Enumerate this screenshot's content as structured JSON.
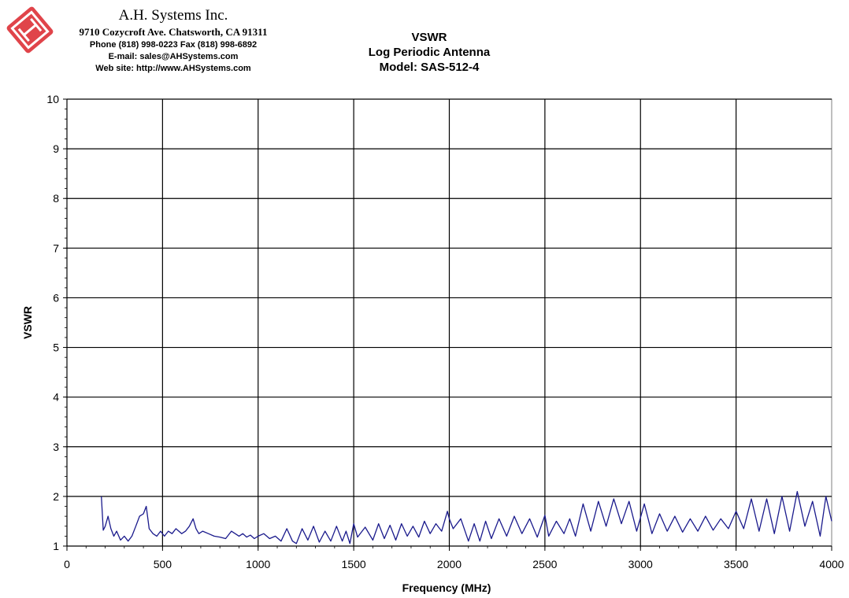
{
  "header": {
    "company_name": "A.H. Systems Inc.",
    "address": "9710 Cozycroft Ave. Chatsworth, CA 91311",
    "phone": "Phone (818) 998-0223 Fax (818) 998-6892",
    "email": "E-mail: sales@AHSystems.com",
    "website": "Web site: http://www.AHSystems.com"
  },
  "colors": {
    "series": "#1a1a8c",
    "logo": "#e0444a",
    "grid": "#000000"
  },
  "chart_data": {
    "type": "line",
    "title_lines": [
      "VSWR",
      "Log Periodic Antenna",
      "Model: SAS-512-4"
    ],
    "xlabel": "Frequency (MHz)",
    "ylabel": "VSWR",
    "xlim": [
      0,
      4000
    ],
    "ylim": [
      1,
      10
    ],
    "xticks": [
      0,
      500,
      1000,
      1500,
      2000,
      2500,
      3000,
      3500,
      4000
    ],
    "yticks": [
      1,
      2,
      3,
      4,
      5,
      6,
      7,
      8,
      9,
      10
    ],
    "grid": true,
    "legend": "none",
    "series": [
      {
        "x": [
          180,
          190,
          200,
          215,
          230,
          245,
          260,
          280,
          300,
          320,
          340,
          360,
          380,
          400,
          415,
          430,
          450,
          470,
          490,
          510,
          530,
          550,
          570,
          600,
          620,
          640,
          660,
          675,
          690,
          710,
          740,
          770,
          800,
          830,
          860,
          880,
          900,
          920,
          940,
          960,
          980,
          1000,
          1030,
          1060,
          1090,
          1120,
          1150,
          1180,
          1200,
          1230,
          1260,
          1290,
          1320,
          1350,
          1380,
          1410,
          1440,
          1460,
          1480,
          1500,
          1520,
          1560,
          1600,
          1630,
          1660,
          1690,
          1720,
          1750,
          1780,
          1810,
          1840,
          1870,
          1900,
          1930,
          1960,
          1990,
          2000,
          2020,
          2060,
          2100,
          2130,
          2160,
          2190,
          2220,
          2260,
          2300,
          2340,
          2380,
          2420,
          2460,
          2500,
          2520,
          2560,
          2600,
          2630,
          2660,
          2700,
          2740,
          2780,
          2820,
          2860,
          2900,
          2940,
          2980,
          3020,
          3060,
          3100,
          3140,
          3180,
          3220,
          3260,
          3300,
          3340,
          3380,
          3420,
          3460,
          3500,
          3540,
          3580,
          3620,
          3660,
          3700,
          3740,
          3780,
          3820,
          3860,
          3900,
          3940,
          3970,
          4000
        ],
        "y": [
          2.0,
          1.32,
          1.4,
          1.6,
          1.35,
          1.2,
          1.3,
          1.12,
          1.2,
          1.1,
          1.2,
          1.4,
          1.6,
          1.65,
          1.8,
          1.35,
          1.25,
          1.2,
          1.3,
          1.2,
          1.3,
          1.25,
          1.35,
          1.25,
          1.3,
          1.4,
          1.55,
          1.35,
          1.25,
          1.3,
          1.25,
          1.2,
          1.18,
          1.15,
          1.3,
          1.25,
          1.2,
          1.25,
          1.18,
          1.22,
          1.15,
          1.2,
          1.25,
          1.15,
          1.2,
          1.1,
          1.35,
          1.1,
          1.05,
          1.35,
          1.12,
          1.4,
          1.08,
          1.3,
          1.1,
          1.4,
          1.1,
          1.3,
          1.05,
          1.45,
          1.18,
          1.38,
          1.12,
          1.45,
          1.15,
          1.42,
          1.12,
          1.45,
          1.2,
          1.4,
          1.18,
          1.5,
          1.25,
          1.45,
          1.3,
          1.7,
          1.55,
          1.35,
          1.55,
          1.1,
          1.45,
          1.1,
          1.5,
          1.15,
          1.55,
          1.2,
          1.6,
          1.25,
          1.55,
          1.18,
          1.62,
          1.2,
          1.5,
          1.25,
          1.55,
          1.2,
          1.85,
          1.3,
          1.9,
          1.4,
          1.95,
          1.45,
          1.9,
          1.3,
          1.85,
          1.25,
          1.65,
          1.3,
          1.6,
          1.28,
          1.55,
          1.3,
          1.6,
          1.32,
          1.55,
          1.35,
          1.7,
          1.35,
          1.95,
          1.3,
          1.95,
          1.25,
          2.0,
          1.3,
          2.1,
          1.4,
          1.9,
          1.2,
          2.0,
          1.5
        ]
      }
    ]
  }
}
